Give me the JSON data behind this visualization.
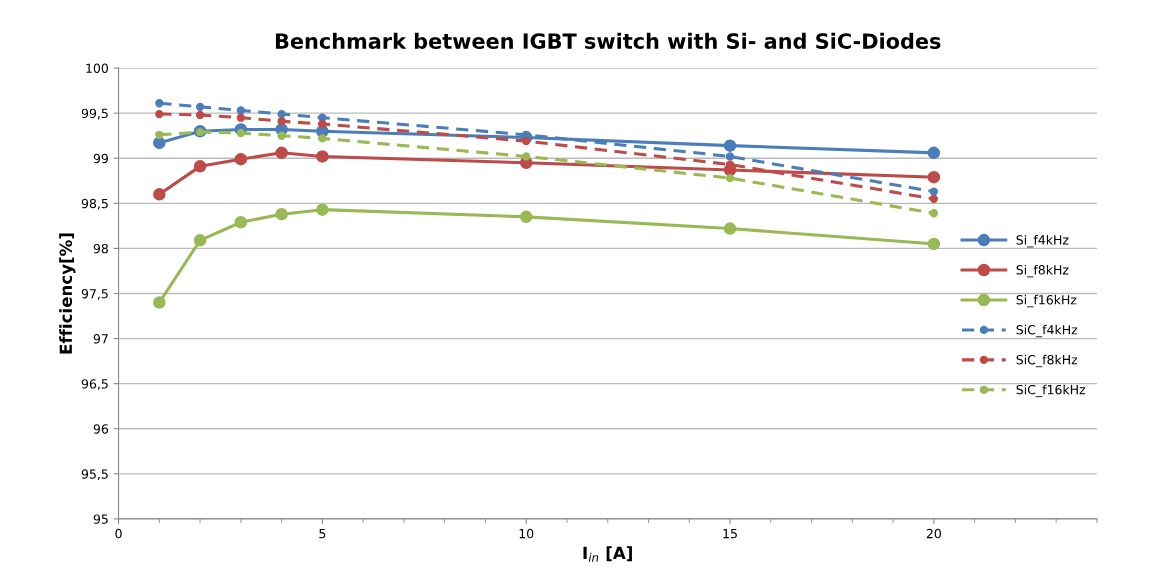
{
  "chart_data": {
    "type": "line",
    "title": "Benchmark between IGBT switch with Si- and SiC-Diodes",
    "xlabel": "I$_{in}$ [A]",
    "ylabel": "Efficiency[%]",
    "x": [
      1,
      2,
      3,
      4,
      5,
      10,
      15,
      20
    ],
    "series": [
      {
        "name": "Si_f4kHz",
        "color": "#4a7ebb",
        "line_style": "solid",
        "values": [
          99.17,
          99.3,
          99.32,
          99.32,
          99.3,
          99.23,
          99.14,
          99.06
        ]
      },
      {
        "name": "Si_f8kHz",
        "color": "#be4b48",
        "line_style": "solid",
        "values": [
          98.6,
          98.91,
          98.99,
          99.06,
          99.02,
          98.95,
          98.87,
          98.79
        ]
      },
      {
        "name": "Si_f16kHz",
        "color": "#98b954",
        "line_style": "solid",
        "values": [
          97.4,
          98.09,
          98.29,
          98.38,
          98.43,
          98.35,
          98.22,
          98.05
        ]
      },
      {
        "name": "SiC_f4kHz",
        "color": "#4a7ebb",
        "line_style": "dashed",
        "values": [
          99.61,
          99.57,
          99.53,
          99.49,
          99.45,
          99.26,
          99.02,
          98.63
        ]
      },
      {
        "name": "SiC_f8kHz",
        "color": "#be4b48",
        "line_style": "dashed",
        "values": [
          99.49,
          99.48,
          99.45,
          99.41,
          99.38,
          99.19,
          98.93,
          98.55
        ]
      },
      {
        "name": "SiC_f16kHz",
        "color": "#98b954",
        "line_style": "dashed",
        "values": [
          99.26,
          99.29,
          99.28,
          99.25,
          99.22,
          99.02,
          98.78,
          98.39
        ]
      }
    ],
    "xlim": [
      0,
      24
    ],
    "xticks": [
      0,
      5,
      10,
      15,
      20
    ],
    "ylim": [
      95,
      100
    ],
    "yticks": [
      95,
      {
        "value": 95.5,
        "label": "95,5"
      },
      96,
      {
        "value": 96.5,
        "label": "96,5"
      },
      97,
      {
        "value": 97.5,
        "label": "97,5"
      },
      98,
      {
        "value": 98.5,
        "label": "98,5"
      },
      99,
      {
        "value": 99.5,
        "label": "99,5"
      },
      100
    ],
    "grid": "y",
    "legend": "right",
    "marker": "circle"
  }
}
